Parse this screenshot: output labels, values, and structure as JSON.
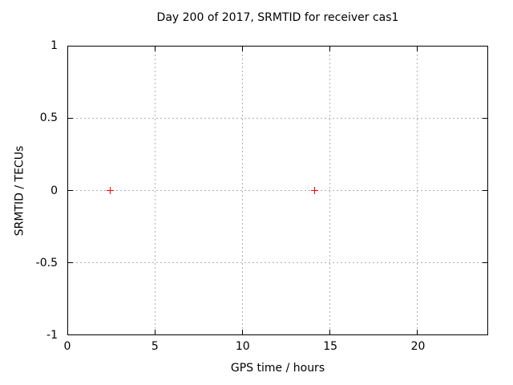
{
  "window": {
    "background": "#ffffff"
  },
  "chart_data": {
    "type": "scatter",
    "title": "Day 200 of 2017, SRMTID for receiver cas1",
    "xlabel": "GPS time / hours",
    "ylabel": "SRMTID / TECUs",
    "xlim": [
      0,
      24
    ],
    "ylim": [
      -1,
      1
    ],
    "xticks": [
      0,
      5,
      10,
      15,
      20
    ],
    "xtick_labels": [
      "0",
      "5",
      "10",
      "15",
      "20"
    ],
    "yticks": [
      1,
      0.5,
      0,
      -0.5,
      -1
    ],
    "ytick_labels": [
      "1",
      "0.5",
      "0",
      "-0.5",
      "-1"
    ],
    "grid": true,
    "legend": "none",
    "grid_color": "#b0b0b0",
    "axis_color": "#000000",
    "text_color": "#000000",
    "series": [
      {
        "name": "SRMTID",
        "marker": "plus",
        "color": "#ff0000",
        "points": [
          {
            "x": 2.4,
            "y": 0
          },
          {
            "x": 14.1,
            "y": 0
          }
        ]
      }
    ]
  }
}
